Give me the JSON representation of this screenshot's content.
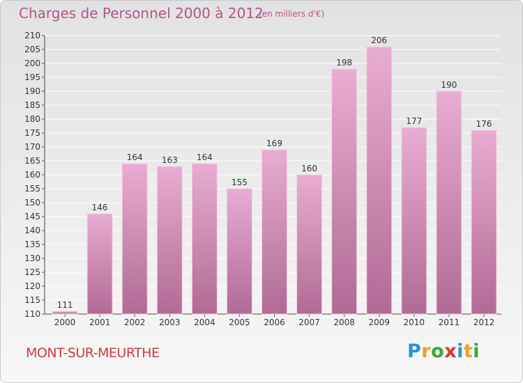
{
  "title": "Charges de Personnel 2000 à 2012",
  "subtitle": "(en milliers d'€)",
  "commune": "MONT-SUR-MEURTHE",
  "logo": {
    "text": "Proxiti",
    "letters": [
      {
        "ch": "P",
        "color": "#2f8fd6"
      },
      {
        "ch": "r",
        "color": "#f0a21c"
      },
      {
        "ch": "o",
        "color": "#3aa63a"
      },
      {
        "ch": "x",
        "color": "#e0332b"
      },
      {
        "ch": "i",
        "color": "#2f8fd6"
      },
      {
        "ch": "t",
        "color": "#f0a21c"
      },
      {
        "ch": "i",
        "color": "#3aa63a"
      }
    ]
  },
  "colors": {
    "title": "#b1558a",
    "bar_top": "#e9acd2",
    "bar_bottom": "#b06b95",
    "commune": "#cc3d3d"
  },
  "chart_data": {
    "type": "bar",
    "categories": [
      "2000",
      "2001",
      "2002",
      "2003",
      "2004",
      "2005",
      "2006",
      "2007",
      "2008",
      "2009",
      "2010",
      "2011",
      "2012"
    ],
    "values": [
      111,
      146,
      164,
      163,
      164,
      155,
      169,
      160,
      198,
      206,
      177,
      190,
      176
    ],
    "title": "Charges de Personnel 2000 à 2012",
    "xlabel": "",
    "ylabel": "",
    "ylim": [
      110,
      210
    ],
    "ytick_step": 5,
    "grid": true,
    "data_labels": true
  }
}
